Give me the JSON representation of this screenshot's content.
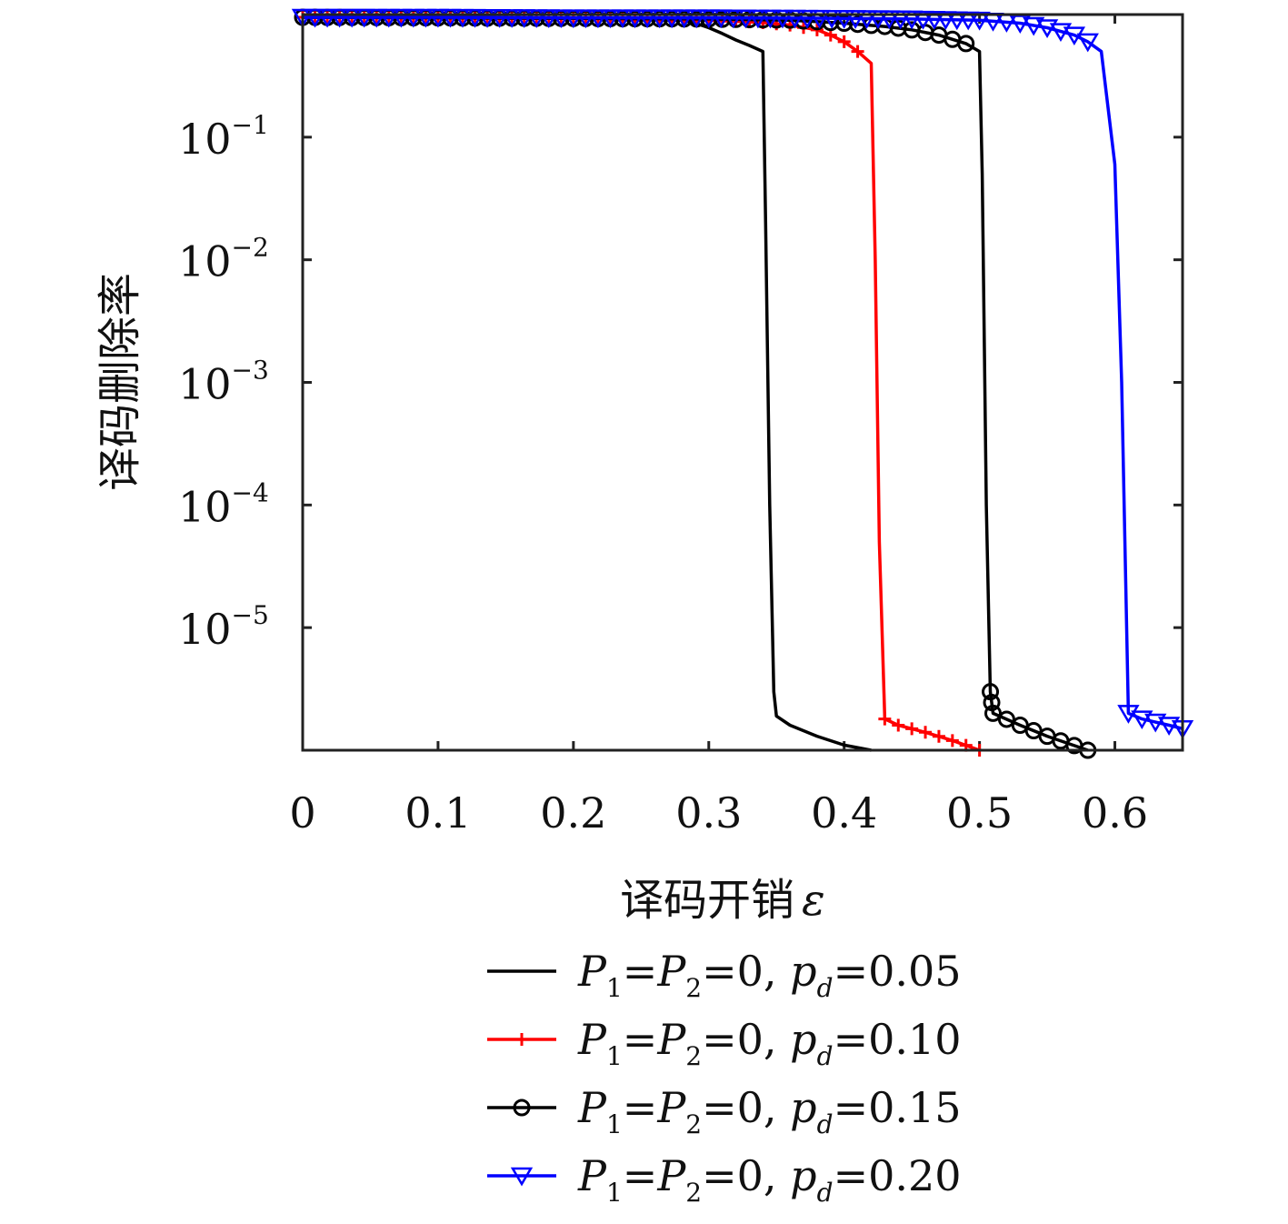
{
  "chart_data": {
    "type": "line",
    "xlabel": "译码开销",
    "xlabel_symbol": "ε",
    "ylabel": "译码删除率",
    "yscale": "log",
    "xlim": [
      0,
      0.65
    ],
    "ylim_exp": [
      -6,
      0
    ],
    "xticks": [
      "0",
      "0.1",
      "0.2",
      "0.3",
      "0.4",
      "0.5",
      "0.6"
    ],
    "yticks": [
      {
        "base": "10",
        "exp": "−1",
        "value": 0.1
      },
      {
        "base": "10",
        "exp": "−2",
        "value": 0.01
      },
      {
        "base": "10",
        "exp": "−3",
        "value": 0.001
      },
      {
        "base": "10",
        "exp": "−4",
        "value": 0.0001
      },
      {
        "base": "10",
        "exp": "−5",
        "value": 1e-05
      }
    ],
    "legend_position": "below",
    "series": [
      {
        "name": "P1=P2=0, pd=0.05",
        "legend": {
          "p": "P",
          "s1": "1",
          "eq1": "=",
          "s2": "2",
          "eq2": "=0, ",
          "pd": "p",
          "d": "d",
          "val": "=0.05"
        },
        "color": "#000000",
        "marker": "none",
        "x": [
          0,
          0.1,
          0.2,
          0.28,
          0.29,
          0.3,
          0.31,
          0.32,
          0.33,
          0.34,
          0.342,
          0.345,
          0.348,
          0.35,
          0.36,
          0.38,
          0.4,
          0.42
        ],
        "y": [
          0.95,
          0.94,
          0.93,
          0.9,
          0.85,
          0.78,
          0.7,
          0.62,
          0.56,
          0.5,
          0.02,
          0.0001,
          3e-06,
          1.9e-06,
          1.6e-06,
          1.3e-06,
          1.1e-06,
          1e-06
        ]
      },
      {
        "name": "P1=P2=0, pd=0.10",
        "legend": {
          "p": "P",
          "s1": "1",
          "eq1": "=",
          "s2": "2",
          "eq2": "=0, ",
          "pd": "p",
          "d": "d",
          "val": "=0.10"
        },
        "color": "#ff0000",
        "marker": "plus",
        "x": [
          0,
          0.1,
          0.2,
          0.3,
          0.34,
          0.36,
          0.38,
          0.39,
          0.4,
          0.41,
          0.42,
          0.423,
          0.426,
          0.43,
          0.44,
          0.46,
          0.48,
          0.5
        ],
        "y": [
          0.95,
          0.94,
          0.93,
          0.9,
          0.86,
          0.82,
          0.75,
          0.68,
          0.6,
          0.5,
          0.4,
          0.01,
          5e-05,
          1.8e-06,
          1.6e-06,
          1.4e-06,
          1.2e-06,
          1e-06
        ]
      },
      {
        "name": "P1=P2=0, pd=0.15",
        "legend": {
          "p": "P",
          "s1": "1",
          "eq1": "=",
          "s2": "2",
          "eq2": "=0, ",
          "pd": "p",
          "d": "d",
          "val": "=0.15"
        },
        "color": "#000000",
        "marker": "circle",
        "x": [
          0,
          0.1,
          0.2,
          0.3,
          0.36,
          0.4,
          0.43,
          0.45,
          0.47,
          0.49,
          0.5,
          0.502,
          0.505,
          0.508,
          0.51,
          0.53,
          0.55,
          0.58
        ],
        "y": [
          0.95,
          0.94,
          0.93,
          0.92,
          0.9,
          0.85,
          0.8,
          0.75,
          0.68,
          0.58,
          0.5,
          0.05,
          0.0001,
          3e-06,
          2e-06,
          1.6e-06,
          1.3e-06,
          1e-06
        ]
      },
      {
        "name": "P1=P2=0, pd=0.20",
        "legend": {
          "p": "P",
          "s1": "1",
          "eq1": "=",
          "s2": "2",
          "eq2": "=0, ",
          "pd": "p",
          "d": "d",
          "val": "=0.20"
        },
        "color": "#0000ff",
        "marker": "triangle-down",
        "x": [
          0,
          0.1,
          0.2,
          0.3,
          0.4,
          0.45,
          0.5,
          0.53,
          0.55,
          0.57,
          0.58,
          0.59,
          0.6,
          0.605,
          0.61,
          0.62,
          0.64,
          0.65
        ],
        "y": [
          0.95,
          0.95,
          0.94,
          0.94,
          0.93,
          0.92,
          0.9,
          0.85,
          0.78,
          0.68,
          0.6,
          0.5,
          0.06,
          0.001,
          2e-06,
          1.8e-06,
          1.6e-06,
          1.5e-06
        ]
      }
    ]
  }
}
